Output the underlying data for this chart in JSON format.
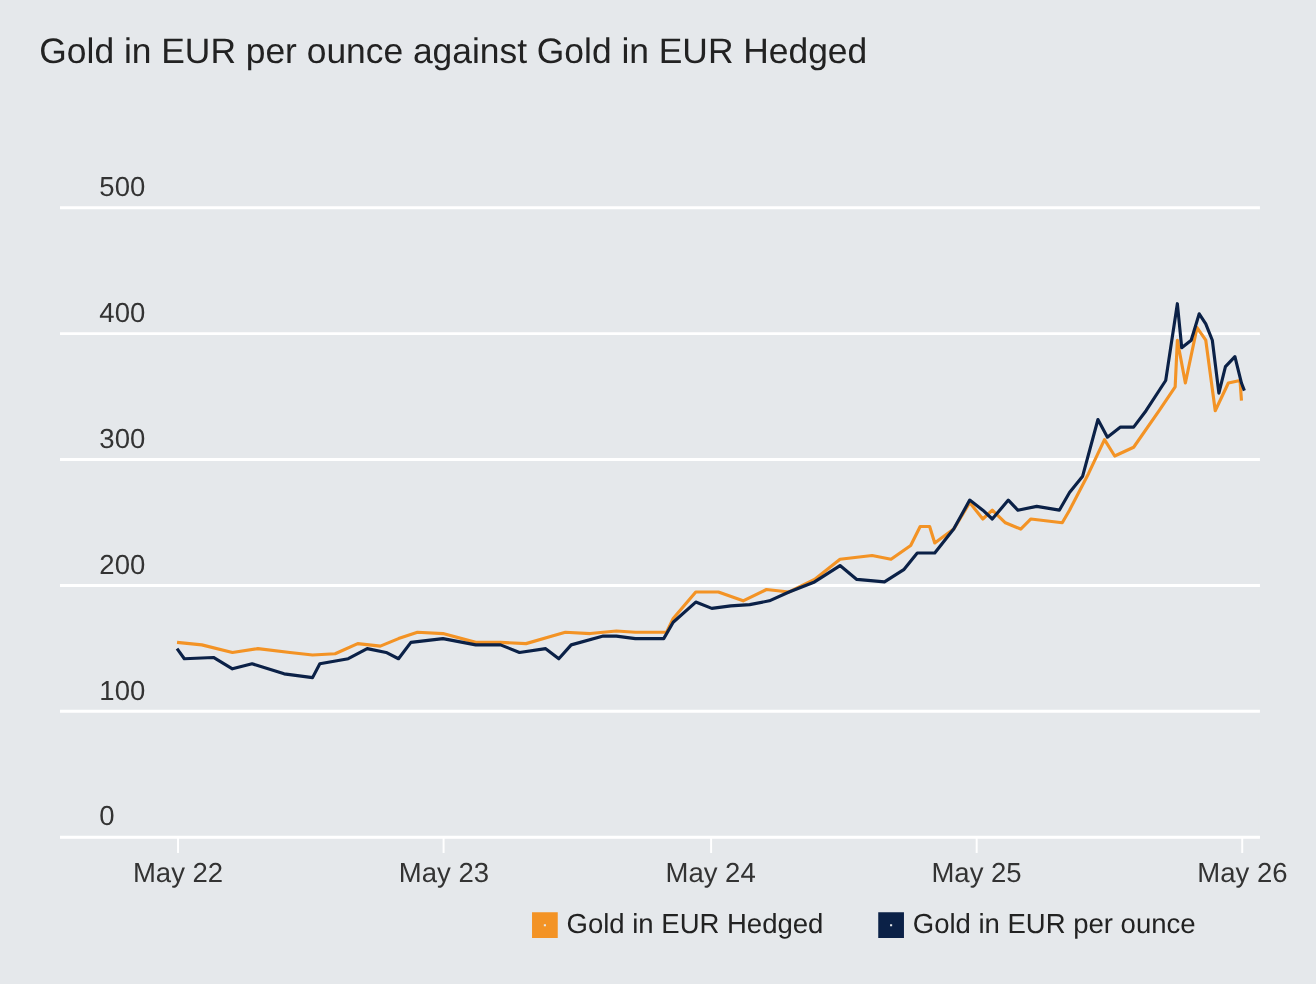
{
  "chart_data": {
    "type": "line",
    "title": "Gold in EUR per ounce against Gold in EUR Hedged",
    "xlim": [
      "2021-11-20",
      "2026-05-25"
    ],
    "xticks": [
      {
        "value": "2022-05-01",
        "label": "May 22"
      },
      {
        "value": "2023-05-01",
        "label": "May 23"
      },
      {
        "value": "2024-05-01",
        "label": "May 24"
      },
      {
        "value": "2025-05-01",
        "label": "May 25"
      },
      {
        "value": "2026-05-01",
        "label": "May 26"
      }
    ],
    "ylim": [
      0,
      500
    ],
    "yticks": [
      0,
      100,
      200,
      300,
      400,
      500
    ],
    "grid": "y",
    "legend": "bottom right",
    "line_style": "solid",
    "marker": "none",
    "series": [
      {
        "name": "Gold in EUR Hedged",
        "color": "#f39325",
        "x": [
          "2022-05-01",
          "2022-06-04",
          "2022-07-16",
          "2022-08-20",
          "2022-10-03",
          "2022-11-03",
          "2022-12-04",
          "2023-01-04",
          "2023-02-04",
          "2023-03-01",
          "2023-03-27",
          "2023-05-01",
          "2023-06-15",
          "2023-07-19",
          "2023-08-23",
          "2023-09-28",
          "2023-10-16",
          "2023-11-19",
          "2023-12-25",
          "2024-01-20",
          "2024-03-03",
          "2024-03-12",
          "2024-04-12",
          "2024-05-13",
          "2024-06-16",
          "2024-07-18",
          "2024-08-18",
          "2024-09-22",
          "2024-10-27",
          "2024-12-10",
          "2025-01-05",
          "2025-02-01",
          "2025-02-14",
          "2025-02-27",
          "2025-03-06",
          "2025-04-01",
          "2025-04-23",
          "2025-05-11",
          "2025-05-24",
          "2025-06-11",
          "2025-07-02",
          "2025-07-16",
          "2025-08-28",
          "2025-09-07",
          "2025-10-03",
          "2025-10-25",
          "2025-11-08",
          "2025-12-04",
          "2026-01-08",
          "2026-01-30",
          "2026-02-02",
          "2026-02-13",
          "2026-03-01",
          "2026-03-13",
          "2026-03-26",
          "2026-04-13",
          "2026-04-29",
          "2026-05-01"
        ],
        "values": [
          154,
          152,
          146,
          149,
          146,
          144,
          145,
          153,
          151,
          157,
          162,
          161,
          154,
          154,
          153,
          159,
          162,
          161,
          163,
          162,
          162,
          173,
          194,
          194,
          187,
          196,
          194,
          204,
          220,
          223,
          220,
          231,
          246,
          246,
          233,
          244,
          265,
          252,
          259,
          249,
          244,
          252,
          249,
          259,
          288,
          315,
          302,
          309,
          338,
          357,
          394,
          360,
          404,
          394,
          338,
          360,
          362,
          346
        ]
      },
      {
        "name": "Gold in EUR per ounce",
        "color": "#0b2147",
        "x": [
          "2022-05-01",
          "2022-05-11",
          "2022-06-20",
          "2022-07-16",
          "2022-08-12",
          "2022-09-25",
          "2022-11-03",
          "2022-11-13",
          "2022-12-22",
          "2023-01-17",
          "2023-02-12",
          "2023-03-01",
          "2023-03-18",
          "2023-05-01",
          "2023-06-15",
          "2023-07-19",
          "2023-08-14",
          "2023-09-19",
          "2023-10-07",
          "2023-10-24",
          "2023-12-07",
          "2023-12-25",
          "2024-01-20",
          "2024-02-28",
          "2024-03-12",
          "2024-04-12",
          "2024-05-04",
          "2024-05-30",
          "2024-06-25",
          "2024-07-22",
          "2024-08-18",
          "2024-09-22",
          "2024-10-27",
          "2024-11-19",
          "2024-12-27",
          "2025-01-23",
          "2025-02-10",
          "2025-03-06",
          "2025-04-01",
          "2025-04-23",
          "2025-05-11",
          "2025-05-24",
          "2025-06-15",
          "2025-06-28",
          "2025-07-24",
          "2025-08-24",
          "2025-09-07",
          "2025-09-25",
          "2025-10-16",
          "2025-10-29",
          "2025-11-16",
          "2025-12-04",
          "2025-12-21",
          "2026-01-17",
          "2026-02-02",
          "2026-02-08",
          "2026-02-21",
          "2026-03-04",
          "2026-03-13",
          "2026-03-22",
          "2026-03-31",
          "2026-04-09",
          "2026-04-22",
          "2026-05-01",
          "2026-05-05"
        ],
        "values": [
          149,
          141,
          142,
          133,
          137,
          129,
          126,
          137,
          141,
          149,
          146,
          141,
          154,
          157,
          152,
          152,
          146,
          149,
          141,
          152,
          159,
          159,
          157,
          157,
          170,
          186,
          181,
          183,
          184,
          187,
          194,
          202,
          215,
          204,
          202,
          212,
          225,
          225,
          244,
          267,
          259,
          252,
          267,
          259,
          262,
          259,
          273,
          286,
          331,
          317,
          325,
          325,
          338,
          362,
          423,
          388,
          394,
          415,
          407,
          394,
          352,
          373,
          381,
          360,
          354
        ]
      }
    ]
  }
}
